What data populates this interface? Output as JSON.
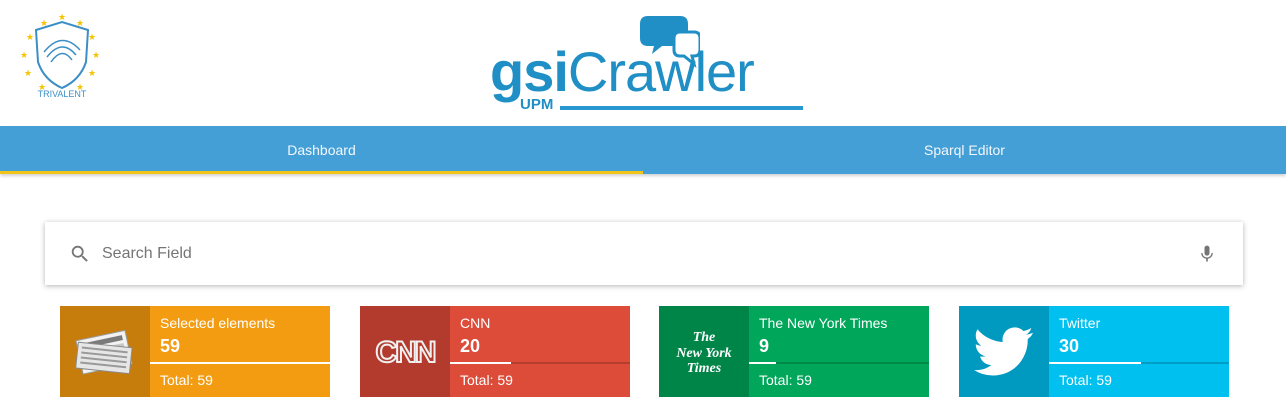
{
  "branding": {
    "trivalent_text": "TRIVALENT",
    "logo_gsi": "gsi",
    "logo_crawler": "Crawler",
    "logo_upm": "UPM"
  },
  "tabs": [
    {
      "label": "Dashboard",
      "active": true
    },
    {
      "label": "Sparql Editor",
      "active": false
    }
  ],
  "search": {
    "placeholder": "Search Field",
    "value": ""
  },
  "cards": [
    {
      "label": "Selected elements",
      "value": "59",
      "total": "Total: 59",
      "progress": 1.0,
      "icon": "newspaper-icon",
      "color": "#f39c12",
      "icon_bg": "#c77d0c"
    },
    {
      "label": "CNN",
      "value": "20",
      "total": "Total: 59",
      "progress": 0.34,
      "icon": "cnn-logo",
      "color": "#dd4b39",
      "icon_bg": "#b23b2e"
    },
    {
      "label": "The New York Times",
      "value": "9",
      "total": "Total: 59",
      "progress": 0.15,
      "icon": "nyt-logo",
      "color": "#00a65a",
      "icon_bg": "#008548"
    },
    {
      "label": "Twitter",
      "value": "30",
      "total": "Total: 59",
      "progress": 0.51,
      "icon": "twitter-bird-icon",
      "color": "#00c0ef",
      "icon_bg": "#0099bf"
    }
  ],
  "card_icon_text": {
    "cnn": "CNN",
    "nyt_line1": "The",
    "nyt_line2": "New York",
    "nyt_line3": "Times"
  }
}
